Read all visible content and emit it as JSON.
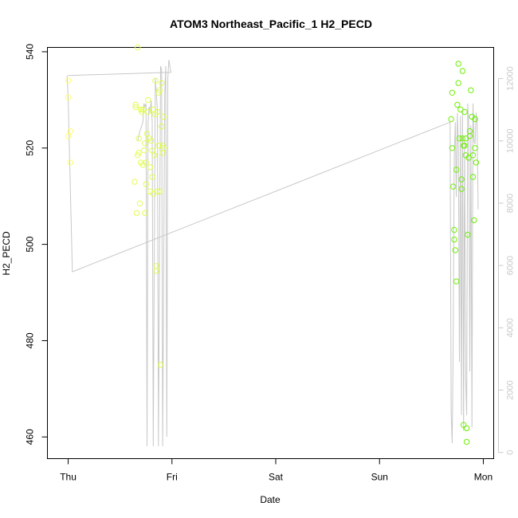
{
  "chart_data": {
    "type": "scatter",
    "title": "ATOM3 Northeast_Pacific_1 H2_PECD",
    "xlabel": "Date",
    "ylabel": "H2_PECD",
    "x_ticks": [
      "Thu",
      "Fri",
      "Sat",
      "Sun",
      "Mon"
    ],
    "x_range_days": [
      -0.2,
      4.1
    ],
    "ylim": [
      455.5,
      540.9
    ],
    "y_ticks": [
      460,
      480,
      500,
      520,
      540
    ],
    "y2lim": [
      -200,
      13000
    ],
    "y2_ticks": [
      0,
      2000,
      4000,
      6000,
      8000,
      10000,
      12000
    ],
    "grid": false,
    "series": [
      {
        "kind": "points",
        "color_range": [
          "#ffff66",
          "#66ee00"
        ],
        "points": [
          [
            0.0,
            534
          ],
          [
            0.0,
            530.5
          ],
          [
            0.0,
            522.5
          ],
          [
            0.02,
            523.5
          ],
          [
            0.02,
            517
          ],
          [
            0.64,
            513
          ],
          [
            0.65,
            529
          ],
          [
            0.65,
            528.5
          ],
          [
            0.66,
            506.5
          ],
          [
            0.67,
            540.9
          ],
          [
            0.67,
            518.5
          ],
          [
            0.68,
            522
          ],
          [
            0.68,
            519
          ],
          [
            0.69,
            508.5
          ],
          [
            0.7,
            528
          ],
          [
            0.7,
            517
          ],
          [
            0.71,
            527.5
          ],
          [
            0.72,
            528
          ],
          [
            0.72,
            516.5
          ],
          [
            0.73,
            519.5
          ],
          [
            0.74,
            506.5
          ],
          [
            0.74,
            521
          ],
          [
            0.75,
            517
          ],
          [
            0.75,
            512.5
          ],
          [
            0.76,
            523
          ],
          [
            0.77,
            530
          ],
          [
            0.77,
            527.5
          ],
          [
            0.78,
            522
          ],
          [
            0.79,
            516
          ],
          [
            0.79,
            511
          ],
          [
            0.8,
            521.5
          ],
          [
            0.81,
            519.5
          ],
          [
            0.81,
            514
          ],
          [
            0.82,
            528
          ],
          [
            0.82,
            510.5
          ],
          [
            0.83,
            518.5
          ],
          [
            0.84,
            527
          ],
          [
            0.84,
            534
          ],
          [
            0.85,
            495.5
          ],
          [
            0.85,
            494.5
          ],
          [
            0.86,
            527.5
          ],
          [
            0.86,
            511
          ],
          [
            0.87,
            531.5
          ],
          [
            0.87,
            520.5
          ],
          [
            0.88,
            532
          ],
          [
            0.88,
            511
          ],
          [
            0.89,
            475
          ],
          [
            0.9,
            524.5
          ],
          [
            0.9,
            533.5
          ],
          [
            0.91,
            520.5
          ],
          [
            0.91,
            519
          ],
          [
            0.92,
            526.5
          ],
          [
            0.92,
            520
          ],
          [
            3.69,
            526
          ],
          [
            3.7,
            531.5
          ],
          [
            3.7,
            520
          ],
          [
            3.71,
            512
          ],
          [
            3.72,
            503
          ],
          [
            3.72,
            501
          ],
          [
            3.73,
            498.8
          ],
          [
            3.74,
            492.3
          ],
          [
            3.74,
            515.5
          ],
          [
            3.75,
            529
          ],
          [
            3.76,
            537.5
          ],
          [
            3.76,
            533.5
          ],
          [
            3.77,
            522
          ],
          [
            3.78,
            528
          ],
          [
            3.79,
            513.5
          ],
          [
            3.79,
            511.5
          ],
          [
            3.8,
            536
          ],
          [
            3.8,
            522
          ],
          [
            3.81,
            462.5
          ],
          [
            3.81,
            520.5
          ],
          [
            3.82,
            527.5
          ],
          [
            3.82,
            520.5
          ],
          [
            3.83,
            522
          ],
          [
            3.83,
            518.5
          ],
          [
            3.84,
            459
          ],
          [
            3.84,
            461.8
          ],
          [
            3.85,
            502
          ],
          [
            3.86,
            518
          ],
          [
            3.87,
            522.5
          ],
          [
            3.87,
            523.5
          ],
          [
            3.88,
            532
          ],
          [
            3.89,
            526.5
          ],
          [
            3.9,
            514
          ],
          [
            3.9,
            518.5
          ],
          [
            3.91,
            505
          ],
          [
            3.92,
            526
          ],
          [
            3.92,
            520
          ],
          [
            3.93,
            517
          ]
        ]
      },
      {
        "kind": "line",
        "axis": "right",
        "color": "#c8c8c8",
        "points": [
          [
            -0.01,
            12100
          ],
          [
            0.0,
            11400
          ],
          [
            0.04,
            5800
          ],
          [
            3.68,
            10600
          ],
          [
            3.69,
            1300
          ],
          [
            3.7,
            300
          ],
          [
            3.71,
            3600
          ],
          [
            3.72,
            9500
          ],
          [
            3.73,
            10600
          ],
          [
            3.74,
            8200
          ],
          [
            3.75,
            10900
          ],
          [
            3.76,
            9800
          ],
          [
            3.77,
            2900
          ],
          [
            3.78,
            10800
          ],
          [
            3.79,
            1200
          ],
          [
            3.8,
            11000
          ],
          [
            3.81,
            700
          ],
          [
            3.82,
            10000
          ],
          [
            3.83,
            2400
          ],
          [
            3.84,
            1200
          ],
          [
            3.85,
            11200
          ],
          [
            3.86,
            10500
          ],
          [
            3.87,
            2600
          ],
          [
            3.88,
            10500
          ],
          [
            3.89,
            800
          ],
          [
            3.9,
            11200
          ],
          [
            3.91,
            10000
          ],
          [
            3.92,
            9900
          ],
          [
            3.93,
            10900
          ],
          [
            3.94,
            10600
          ],
          [
            3.95,
            7800
          ]
        ]
      },
      {
        "kind": "line",
        "axis": "right",
        "color": "#c8c8c8",
        "points": [
          [
            0.0,
            12100
          ],
          [
            0.99,
            12200
          ],
          [
            0.97,
            12600
          ],
          [
            0.96,
            12000
          ],
          [
            0.95,
            500
          ],
          [
            0.94,
            12400
          ],
          [
            0.93,
            11500
          ],
          [
            0.91,
            200
          ],
          [
            0.9,
            12300
          ],
          [
            0.89,
            12400
          ],
          [
            0.87,
            200
          ],
          [
            0.86,
            11000
          ],
          [
            0.84,
            12000
          ],
          [
            0.82,
            200
          ],
          [
            0.81,
            10600
          ],
          [
            0.8,
            11300
          ],
          [
            0.79,
            10900
          ],
          [
            0.78,
            11100
          ],
          [
            0.77,
            10600
          ],
          [
            0.76,
            200
          ],
          [
            0.75,
            11200
          ],
          [
            0.74,
            11100
          ],
          [
            0.73,
            11200
          ],
          [
            0.72,
            10600
          ],
          [
            0.71,
            10500
          ],
          [
            0.7,
            10400
          ],
          [
            0.69,
            10300
          ],
          [
            0.67,
            10000
          ]
        ]
      }
    ]
  }
}
